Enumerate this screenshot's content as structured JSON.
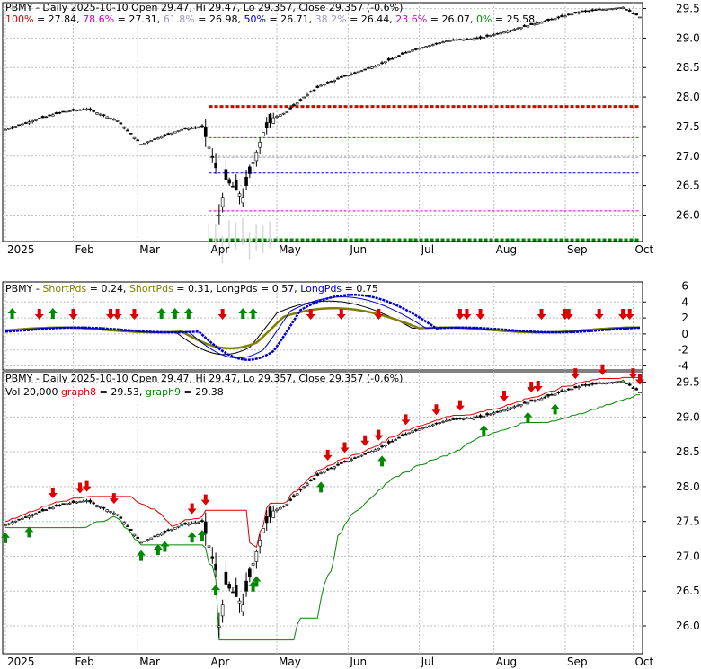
{
  "colors": {
    "frame": "#000000",
    "grid": "#bfbfbf",
    "fib_100": "#dd0000",
    "fib_786": "#cc00cc",
    "fib_618": "#9a9ab5",
    "fib_50": "#0000cc",
    "fib_382": "#9a9ab5",
    "fib_236": "#cc00cc",
    "fib_0": "#008800",
    "short_pds_1": "#000000",
    "short_pds_2": "#808000",
    "long_pds_1": "#0000cc",
    "long_pds_2": "#0000cc",
    "graph8": "#dd0000",
    "graph9": "#008800",
    "arrow_up": "#008800",
    "arrow_down": "#dd0000"
  },
  "panel1": {
    "title": "PBMY - Daily 2025-10-10 Open 29.47, Hi 29.47, Lo 29.357, Close 29.357 (-0.6%)",
    "fib_legend": [
      {
        "label": "100%",
        "value": "= 27.84",
        "color": "#dd0000"
      },
      {
        "label": "78.6%",
        "value": "= 27.31",
        "color": "#cc00cc"
      },
      {
        "label": "61.8%",
        "value": "= 26.98",
        "color": "#9a9ab5"
      },
      {
        "label": "50%",
        "value": "= 26.71",
        "color": "#0000cc"
      },
      {
        "label": "38.2%",
        "value": "= 26.44",
        "color": "#9a9ab5"
      },
      {
        "label": "23.6%",
        "value": "= 26.07",
        "color": "#cc00cc"
      },
      {
        "label": "0%",
        "value": "= 25.58",
        "color": "#008800"
      }
    ],
    "y_ticks": [
      "29.5",
      "29.0",
      "28.5",
      "28.0",
      "27.5",
      "27.0",
      "26.5",
      "26.0"
    ],
    "x_ticks": [
      "2025",
      "Feb",
      "Mar",
      "Apr",
      "May",
      "Jun",
      "Jul",
      "Aug",
      "Sep",
      "Oct"
    ]
  },
  "panel2": {
    "legend": [
      {
        "label": "PBMY - ",
        "color": "#000000"
      },
      {
        "label": "ShortPds",
        "color": "#808000"
      },
      {
        "label": " = 0.24, ",
        "color": "#000000"
      },
      {
        "label": "ShortPds",
        "color": "#808000"
      },
      {
        "label": " = 0.31, ",
        "color": "#000000"
      },
      {
        "label": "LongPds",
        "color": "#000000"
      },
      {
        "label": " = 0.57, ",
        "color": "#000000"
      },
      {
        "label": "LongPds",
        "color": "#0000cc"
      },
      {
        "label": " = 0.75",
        "color": "#000000"
      }
    ],
    "y_ticks": [
      "6",
      "4",
      "2",
      "0",
      "-2",
      "-4"
    ]
  },
  "panel3": {
    "title": "PBMY - Daily 2025-10-10 Open 29.47, Hi 29.47, Lo 29.357, Close 29.357 (-0.6%)",
    "legend": [
      {
        "label": "Vol 20,000 ",
        "color": "#000000"
      },
      {
        "label": "graph8",
        "color": "#dd0000"
      },
      {
        "label": " = 29.53, ",
        "color": "#000000"
      },
      {
        "label": "graph9",
        "color": "#008800"
      },
      {
        "label": " = 29.38",
        "color": "#000000"
      }
    ],
    "y_ticks": [
      "29.5",
      "29.0",
      "28.5",
      "28.0",
      "27.5",
      "27.0",
      "26.5",
      "26.0"
    ],
    "x_ticks": [
      "2025",
      "Feb",
      "Mar",
      "Apr",
      "May",
      "Jun",
      "Jul",
      "Aug",
      "Sep",
      "Oct"
    ]
  },
  "chart_data": [
    {
      "type": "candlestick",
      "title": "PBMY - Daily 2025-10-10 Open 29.47, Hi 29.47, Lo 29.357, Close 29.357 (-0.6%)",
      "ylim": [
        25.55,
        29.6
      ],
      "x_ticks": [
        "2025",
        "Feb",
        "Mar",
        "Apr",
        "May",
        "Jun",
        "Jul",
        "Aug",
        "Sep",
        "Oct"
      ],
      "y_ticks": [
        29.5,
        29.0,
        28.5,
        28.0,
        27.5,
        27.0,
        26.5,
        26.0
      ],
      "fib_levels": [
        {
          "label": "100%",
          "value": 27.84
        },
        {
          "label": "78.6%",
          "value": 27.31
        },
        {
          "label": "61.8%",
          "value": 26.98
        },
        {
          "label": "50%",
          "value": 26.71
        },
        {
          "label": "38.2%",
          "value": 26.44
        },
        {
          "label": "23.6%",
          "value": 26.07
        },
        {
          "label": "0%",
          "value": 25.58
        }
      ],
      "close_keypoints": [
        [
          0,
          27.45
        ],
        [
          8,
          27.6
        ],
        [
          17,
          27.75
        ],
        [
          24,
          27.8
        ],
        [
          33,
          27.6
        ],
        [
          40,
          27.2
        ],
        [
          47,
          27.35
        ],
        [
          52,
          27.45
        ],
        [
          58,
          27.5
        ],
        [
          62,
          26.8
        ],
        [
          63,
          26.0
        ],
        [
          65,
          26.6
        ],
        [
          70,
          26.3
        ],
        [
          73,
          26.9
        ],
        [
          76,
          27.4
        ],
        [
          79,
          27.65
        ],
        [
          83,
          27.75
        ],
        [
          88,
          28.0
        ],
        [
          93,
          28.2
        ],
        [
          100,
          28.35
        ],
        [
          110,
          28.55
        ],
        [
          120,
          28.8
        ],
        [
          130,
          28.95
        ],
        [
          140,
          29.0
        ],
        [
          150,
          29.15
        ],
        [
          160,
          29.3
        ],
        [
          170,
          29.45
        ],
        [
          182,
          29.52
        ],
        [
          187,
          29.357
        ]
      ],
      "total_bars": 188
    },
    {
      "type": "line",
      "series": [
        {
          "name": "ShortPds",
          "last": 0.24
        },
        {
          "name": "ShortPds",
          "last": 0.31
        },
        {
          "name": "LongPds",
          "last": 0.57
        },
        {
          "name": "LongPds",
          "last": 0.75
        }
      ],
      "ylim": [
        -4.5,
        6.5
      ],
      "y_ticks": [
        6,
        4,
        2,
        0,
        -2,
        -4
      ]
    },
    {
      "type": "candlestick",
      "title": "PBMY - Daily 2025-10-10 Open 29.47, Hi 29.47, Lo 29.357, Close 29.357 (-0.6%)",
      "ylim": [
        25.6,
        29.65
      ],
      "series": [
        {
          "name": "graph8",
          "last": 29.53
        },
        {
          "name": "graph9",
          "last": 29.38
        }
      ],
      "volume_label": "Vol 20,000"
    }
  ]
}
